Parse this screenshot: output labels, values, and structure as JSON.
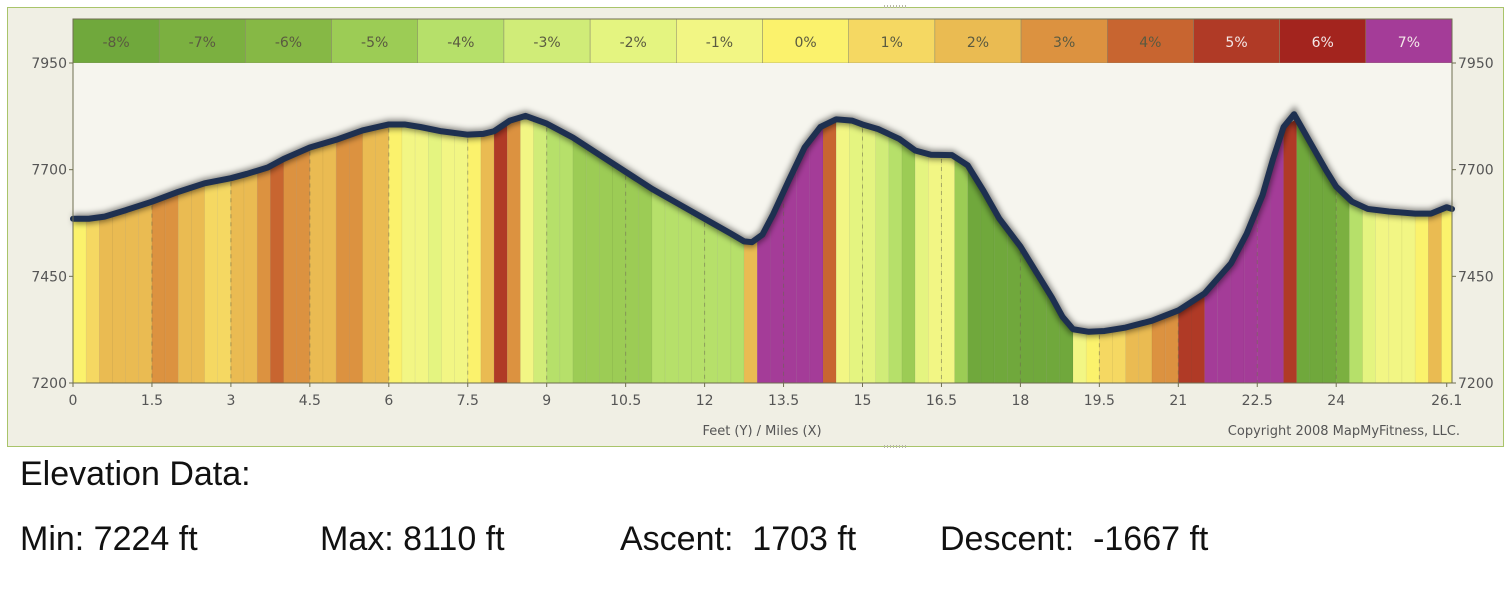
{
  "colors": {
    "frame_bg": "#f0efe4",
    "plot_bg": "#f6f5ee",
    "frame_border": "#a9c46a",
    "profile_line": "#1e3050",
    "axis_text": "#555555"
  },
  "grade_legend": [
    {
      "label": "-8%",
      "grade": -8,
      "color": "#70a83c"
    },
    {
      "label": "-7%",
      "grade": -7,
      "color": "#7bb040"
    },
    {
      "label": "-6%",
      "grade": -6,
      "color": "#86b845"
    },
    {
      "label": "-5%",
      "grade": -5,
      "color": "#9ccc55"
    },
    {
      "label": "-4%",
      "grade": -4,
      "color": "#b6e06a"
    },
    {
      "label": "-3%",
      "grade": -3,
      "color": "#d0ec78"
    },
    {
      "label": "-2%",
      "grade": -2,
      "color": "#e4f480"
    },
    {
      "label": "-1%",
      "grade": -1,
      "color": "#f2f684"
    },
    {
      "label": "0%",
      "grade": 0,
      "color": "#fbf26c"
    },
    {
      "label": "1%",
      "grade": 1,
      "color": "#f5d862"
    },
    {
      "label": "2%",
      "grade": 2,
      "color": "#eabb52"
    },
    {
      "label": "3%",
      "grade": 3,
      "color": "#dc9240"
    },
    {
      "label": "4%",
      "grade": 4,
      "color": "#c86530"
    },
    {
      "label": "5%",
      "grade": 5,
      "color": "#b03a26"
    },
    {
      "label": "6%",
      "grade": 6,
      "color": "#a3241e"
    },
    {
      "label": "7%",
      "grade": 7,
      "color": "#a43c98"
    }
  ],
  "chart_data": {
    "type": "area",
    "title": "",
    "xlabel": "Feet (Y) / Miles (X)",
    "xlim": [
      0,
      26.2
    ],
    "ylim": [
      7200,
      7950
    ],
    "x_ticks": [
      0,
      1.5,
      3,
      4.5,
      6,
      7.5,
      9,
      10.5,
      12,
      13.5,
      15,
      16.5,
      18,
      19.5,
      21,
      22.5,
      24,
      26.1
    ],
    "x_tick_labels": [
      "0",
      "1.5",
      "3",
      "4.5",
      "6",
      "7.5",
      "9",
      "10.5",
      "12",
      "13.5",
      "15",
      "16.5",
      "18",
      "19.5",
      "21",
      "22.5",
      "24",
      "26.1"
    ],
    "y_ticks": [
      7200,
      7450,
      7700,
      7950
    ],
    "y_tick_labels": [
      "7200",
      "7450",
      "7700",
      "7950"
    ],
    "grid": "dashed vertical lines",
    "series": [
      {
        "x": [
          0,
          0.3,
          0.6,
          1.0,
          1.5,
          2.0,
          2.5,
          3.0,
          3.3,
          3.7,
          4.0,
          4.5,
          5.0,
          5.5,
          6.0,
          6.3,
          6.6,
          7.0,
          7.5,
          7.8,
          8.0,
          8.3,
          8.6,
          9.0,
          9.5,
          10.0,
          10.5,
          11.0,
          11.5,
          12.0,
          12.5,
          12.75,
          12.9,
          13.1,
          13.3,
          13.6,
          13.9,
          14.2,
          14.5,
          14.8,
          15.0,
          15.3,
          15.7,
          16.0,
          16.3,
          16.7,
          17.0,
          17.3,
          17.6,
          18.0,
          18.3,
          18.6,
          18.8,
          19.0,
          19.3,
          19.6,
          20.0,
          20.5,
          21.0,
          21.5,
          22.0,
          22.3,
          22.6,
          22.8,
          23.0,
          23.2,
          23.5,
          23.8,
          24.0,
          24.3,
          24.6,
          25.0,
          25.5,
          25.8,
          26.1,
          26.2
        ],
        "y": [
          7585,
          7585,
          7590,
          7605,
          7625,
          7648,
          7668,
          7680,
          7690,
          7705,
          7725,
          7752,
          7770,
          7792,
          7806,
          7806,
          7800,
          7790,
          7782,
          7784,
          7790,
          7815,
          7826,
          7808,
          7775,
          7735,
          7695,
          7655,
          7620,
          7585,
          7550,
          7532,
          7530,
          7548,
          7595,
          7675,
          7752,
          7800,
          7818,
          7815,
          7806,
          7795,
          7772,
          7745,
          7735,
          7734,
          7710,
          7650,
          7585,
          7520,
          7460,
          7400,
          7355,
          7326,
          7320,
          7322,
          7330,
          7346,
          7370,
          7410,
          7480,
          7550,
          7640,
          7725,
          7800,
          7830,
          7765,
          7700,
          7660,
          7625,
          7608,
          7602,
          7597,
          7597,
          7612,
          7608
        ]
      }
    ],
    "annotations": [
      "Copyright 2008 MapMyFitness, LLC."
    ]
  },
  "elevation": {
    "heading": "Elevation Data:",
    "min": "Min: 7224 ft",
    "max": "Max: 8110 ft",
    "ascent": "Ascent:  1703 ft",
    "descent": "Descent:  -1667 ft"
  }
}
